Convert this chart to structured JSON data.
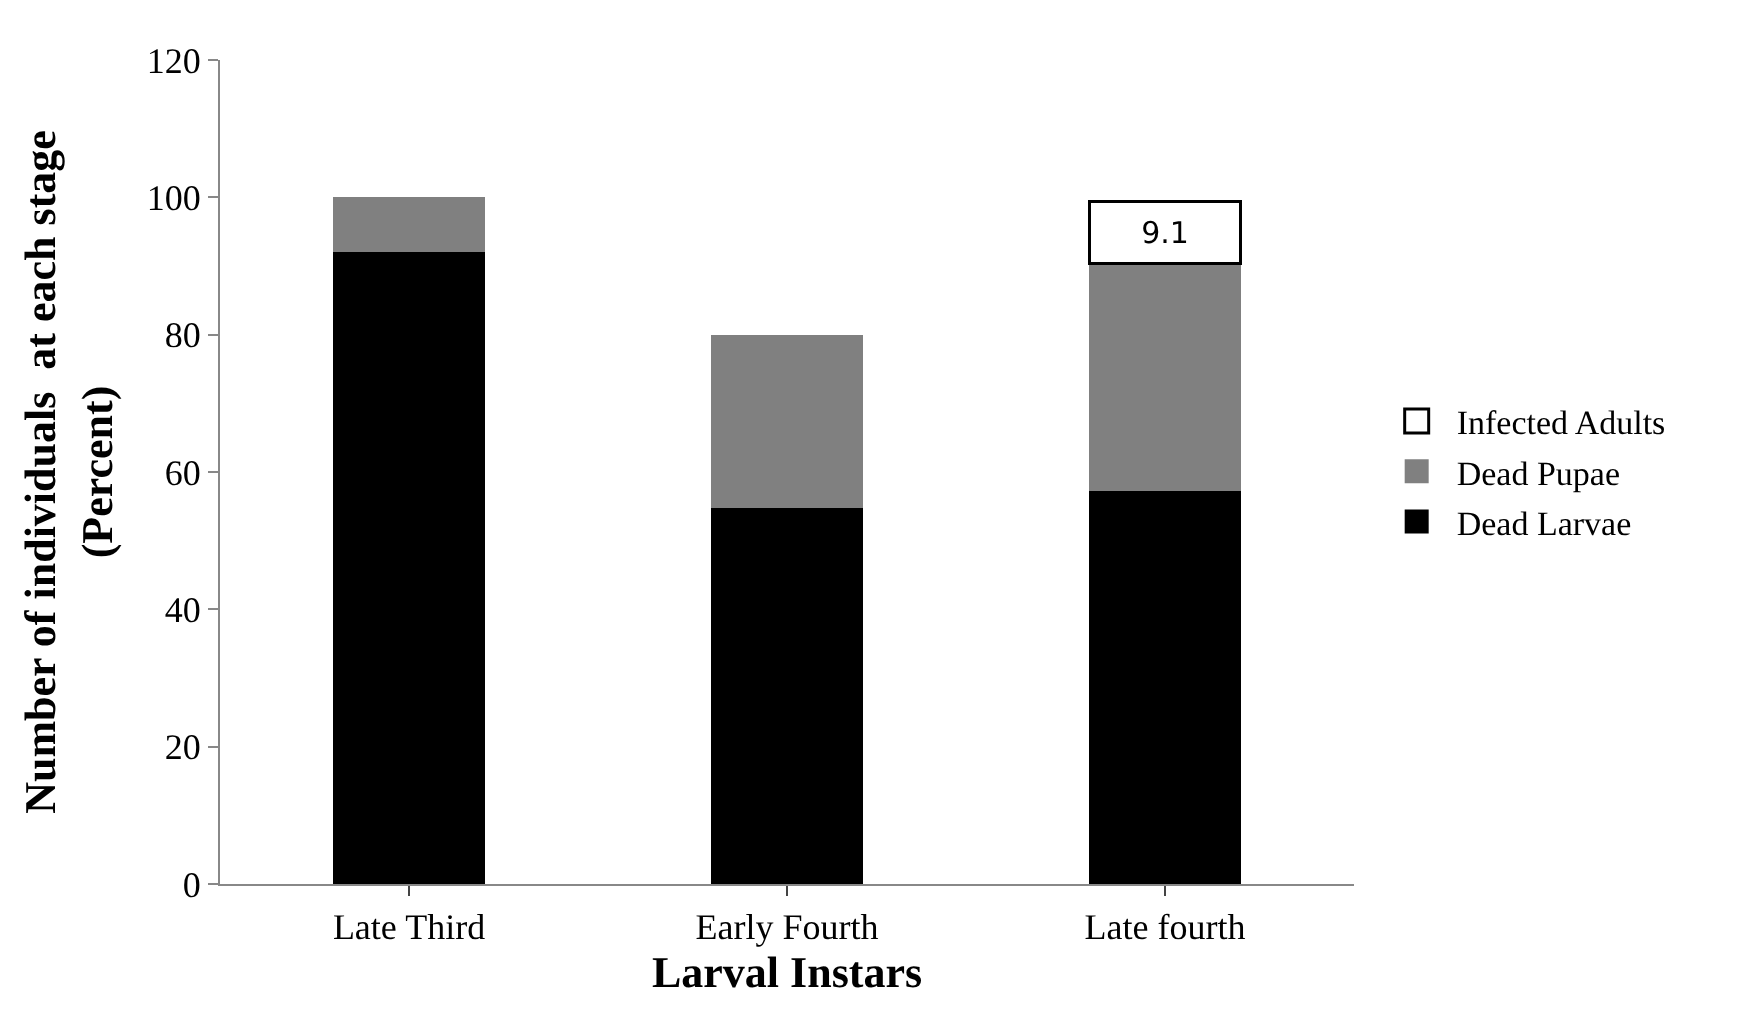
{
  "chart_data": {
    "type": "bar",
    "stacked": true,
    "xlabel": "Larval Instars",
    "ylabel": "Number of individuals  at each stage\n(Percent)",
    "categories": [
      "Late Third",
      "Early Fourth",
      "Late fourth"
    ],
    "series": [
      {
        "name": "Dead Larvae",
        "color": "#000000",
        "values": [
          92.1,
          54.7,
          57.3
        ]
      },
      {
        "name": "Dead Pupae",
        "color": "#808080",
        "values": [
          7.9,
          25.3,
          33.0
        ]
      },
      {
        "name": "Infected Adults",
        "color": "#ffffff",
        "values": [
          null,
          null,
          9.1
        ],
        "value_labels": [
          null,
          null,
          "9.1"
        ]
      }
    ],
    "ylim": [
      0,
      120
    ],
    "yticks": [
      0,
      20,
      40,
      60,
      80,
      100,
      120
    ],
    "grid": false,
    "legend": "right"
  }
}
